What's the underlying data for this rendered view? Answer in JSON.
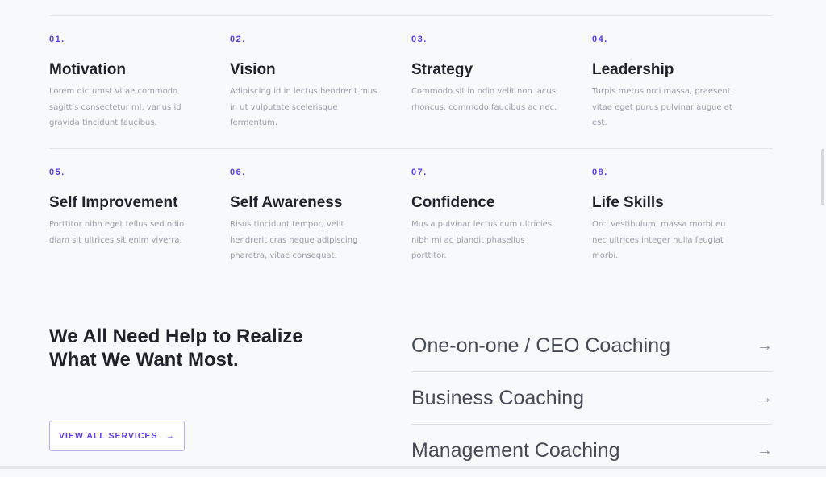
{
  "features": [
    {
      "num": "01.",
      "title": "Motivation",
      "desc": "Lorem dictumst vitae commodo sagittis consectetur mi, varius id gravida tincidunt faucibus."
    },
    {
      "num": "02.",
      "title": "Vision",
      "desc": "Adipiscing id in lectus hendrerit mus in ut vulputate scelerisque fermentum."
    },
    {
      "num": "03.",
      "title": "Strategy",
      "desc": "Commodo sit in odio velit non lacus, rhoncus, commodo faucibus ac nec."
    },
    {
      "num": "04.",
      "title": "Leadership",
      "desc": "Turpis metus orci massa, praesent vitae eget purus pulvinar augue et est."
    },
    {
      "num": "05.",
      "title": "Self Improvement",
      "desc": "Porttitor nibh eget tellus sed odio diam sit ultrices sit enim viverra."
    },
    {
      "num": "06.",
      "title": "Self Awareness",
      "desc": "Risus tincidunt tempor, velit hendrerit cras neque adipiscing pharetra, vitae consequat."
    },
    {
      "num": "07.",
      "title": "Confidence",
      "desc": "Mus a pulvinar lectus cum ultricies nibh mi ac blandit phasellus porttitor."
    },
    {
      "num": "08.",
      "title": "Life Skills",
      "desc": "Orci vestibulum, massa morbi eu nec ultrices integer nulla feugiat morbi."
    }
  ],
  "services_section": {
    "heading": "We All Need Help to Realize What We Want Most.",
    "button_label": "VIEW ALL SERVICES",
    "arrow": "→",
    "services": [
      {
        "label": "One-on-one / CEO Coaching"
      },
      {
        "label": "Business Coaching"
      },
      {
        "label": "Management Coaching"
      }
    ]
  },
  "colors": {
    "accent": "#5b3cf5",
    "text": "#1f2229",
    "muted": "#9a9ea8"
  }
}
